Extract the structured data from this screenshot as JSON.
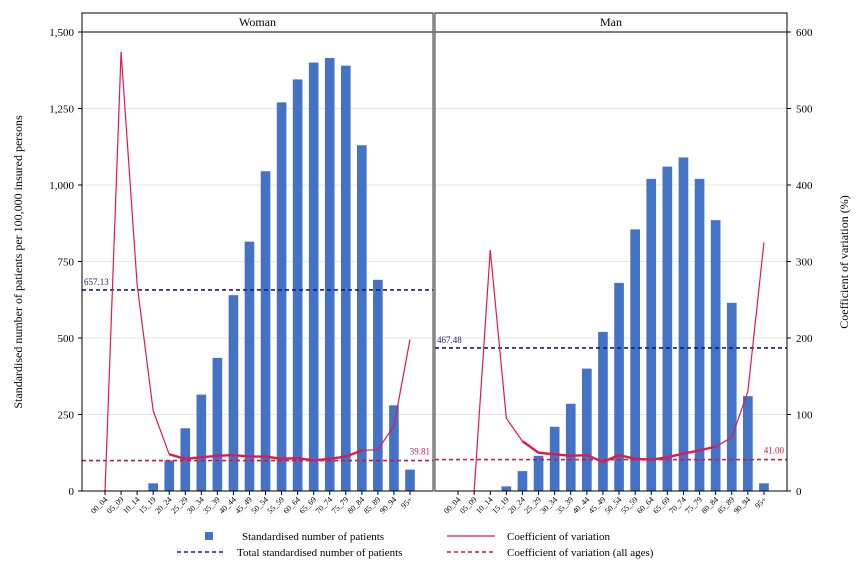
{
  "chart_data": {
    "type": "bar",
    "panels": [
      "Woman",
      "Man"
    ],
    "categories": [
      "00_04",
      "05_09",
      "10_14",
      "15_19",
      "20_24",
      "25_29",
      "30_34",
      "35_39",
      "40_44",
      "45_49",
      "50_54",
      "55_59",
      "60_64",
      "65_69",
      "70_74",
      "75_79",
      "80_84",
      "85_89",
      "90_94",
      "95+"
    ],
    "left_axis": {
      "label": "Standardised number of patients per 100,000 insured persons",
      "ylim": [
        0,
        1500
      ],
      "ticks": [
        "0",
        "250",
        "500",
        "750",
        "1,000",
        "1,250",
        "1,500"
      ]
    },
    "right_axis": {
      "label": "Coefficient of variation (%)",
      "ylim": [
        0,
        600
      ],
      "ticks": [
        "0",
        "100",
        "200",
        "300",
        "400",
        "500",
        "600"
      ]
    },
    "series": [
      {
        "name": "Standardised number of patients",
        "kind": "bar",
        "axis": "left",
        "color": "#4472c4",
        "values": {
          "Woman": [
            0,
            0,
            0,
            25,
            100,
            205,
            315,
            435,
            640,
            815,
            1045,
            1270,
            1345,
            1400,
            1415,
            1390,
            1130,
            690,
            280,
            70
          ],
          "Man": [
            0,
            0,
            0,
            15,
            65,
            115,
            210,
            285,
            400,
            520,
            680,
            855,
            1020,
            1060,
            1090,
            1020,
            885,
            615,
            310,
            25
          ]
        }
      },
      {
        "name": "Coefficient of variation",
        "kind": "line",
        "axis": "right",
        "color": "#e0194f",
        "values": {
          "Woman": [
            0,
            574,
            270,
            105,
            48,
            42,
            44,
            46,
            47,
            45,
            45,
            42,
            43,
            40,
            42,
            45,
            53,
            54,
            85,
            198
          ],
          "Man": [
            0,
            0,
            315,
            95,
            65,
            50,
            48,
            46,
            47,
            38,
            47,
            42,
            41,
            44,
            49,
            53,
            58,
            70,
            130,
            325
          ]
        }
      },
      {
        "name": "Total standardised number of patients",
        "kind": "hline",
        "axis": "left",
        "color": "#1a1a80",
        "values": {
          "Woman": 657.13,
          "Man": 467.48
        }
      },
      {
        "name": "Coefficient of variation (all ages)",
        "kind": "hline",
        "axis": "right",
        "color": "#d0183e",
        "values": {
          "Woman": 39.81,
          "Man": 41.0
        }
      }
    ],
    "hline_labels": {
      "Woman": {
        "total": "657.13",
        "cv": "39.81"
      },
      "Man": {
        "total": "467.48",
        "cv": "41.00"
      }
    },
    "grid": true,
    "legend": "bottom"
  }
}
